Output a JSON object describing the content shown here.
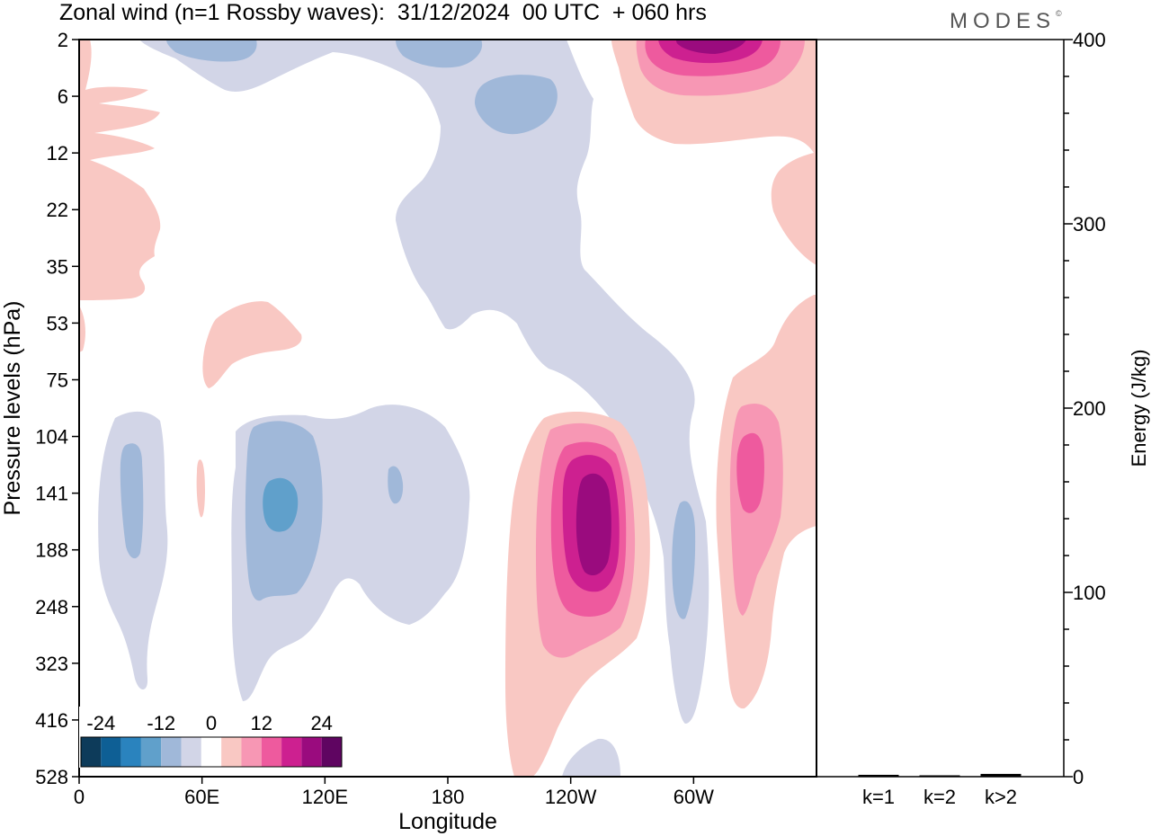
{
  "header": {
    "title": "Zonal wind (n=1 Rossby waves):  31/12/2024  00 UTC  + 060 hrs",
    "brand": "MODES",
    "brand_mark": "©"
  },
  "chart_data": [
    {
      "type": "heatmap",
      "title": "Zonal wind (n=1 Rossby waves):  31/12/2024  00 UTC  + 060 hrs",
      "xlabel": "Longitude",
      "ylabel": "Pressure levels (hPa)",
      "x_ticks": [
        "0",
        "60E",
        "120E",
        "180",
        "120W",
        "60W"
      ],
      "x_tick_degrees": [
        0,
        60,
        120,
        180,
        240,
        300
      ],
      "x_range_degrees": [
        0,
        360
      ],
      "y_ticks": [
        2,
        6,
        12,
        22,
        35,
        53,
        75,
        104,
        141,
        188,
        248,
        323,
        416,
        528
      ],
      "y_range": [
        2,
        528
      ],
      "y_axis": "pressure levels, top = 2 hPa, bottom = 528 hPa",
      "colorbar": {
        "labels": [
          "-24",
          "-12",
          "0",
          "12",
          "24"
        ],
        "levels": [
          -28,
          -24,
          -20,
          -16,
          -12,
          -8,
          -4,
          4,
          8,
          12,
          16,
          20,
          24,
          28
        ],
        "colors": [
          "#0d3b5a",
          "#0e5f95",
          "#2a83be",
          "#60a0cb",
          "#a0b8d9",
          "#d2d5e7",
          "#ffffff",
          "#f9c8c3",
          "#f797b4",
          "#ee5a9e",
          "#cd2090",
          "#9a0b7e",
          "#5f0561"
        ],
        "placement": "bottom-left"
      },
      "features": [
        {
          "sign": "negative",
          "peak": -16,
          "longitude_deg": 100,
          "level_hPa": 141
        },
        {
          "sign": "negative",
          "peak": -12,
          "longitude_deg": 27,
          "level_hPa": 141
        },
        {
          "sign": "negative",
          "peak": -12,
          "longitude_deg": 154,
          "level_hPa": 141
        },
        {
          "sign": "negative",
          "peak": -12,
          "longitude_deg": 296,
          "level_hPa": 188
        },
        {
          "sign": "negative",
          "peak": -12,
          "longitude_deg": 78,
          "level_hPa": 2
        },
        {
          "sign": "negative",
          "peak": -12,
          "longitude_deg": 187,
          "level_hPa": 2
        },
        {
          "sign": "negative",
          "peak": -12,
          "longitude_deg": 210,
          "level_hPa": 6
        },
        {
          "sign": "positive",
          "peak": 24,
          "longitude_deg": 252,
          "level_hPa": 141
        },
        {
          "sign": "positive",
          "peak": 16,
          "longitude_deg": 327,
          "level_hPa": 128
        },
        {
          "sign": "positive",
          "peak": 24,
          "longitude_deg": 305,
          "level_hPa": 2
        },
        {
          "sign": "positive",
          "peak": 4,
          "longitude_deg": 88,
          "level_hPa": 53
        }
      ]
    },
    {
      "type": "bar",
      "ylabel": "Energy (J/kg)",
      "categories": [
        "k=1",
        "k=2",
        "k>2"
      ],
      "values": [
        1,
        0.5,
        1.5
      ],
      "ylim": [
        0,
        400
      ],
      "y_ticks": [
        0,
        100,
        200,
        300,
        400
      ]
    }
  ]
}
